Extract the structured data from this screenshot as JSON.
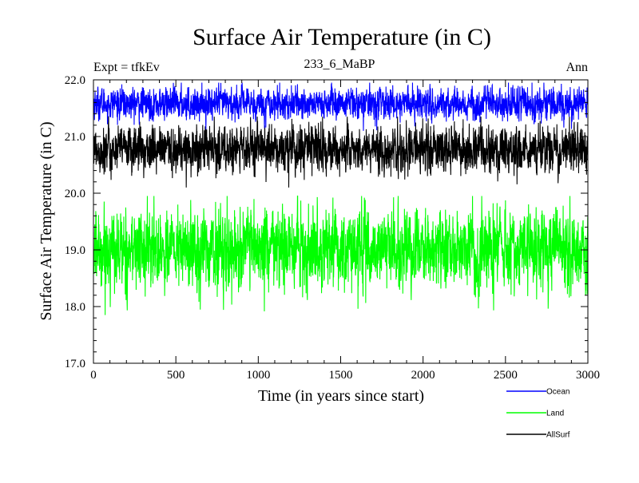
{
  "chart_data": {
    "type": "line",
    "title": "Surface Air Temperature (in C)",
    "subtitle_left": "Expt = tfkEv",
    "subtitle_center": "233_6_MaBP",
    "subtitle_right": "Ann",
    "xlabel": "Time (in years since start)",
    "ylabel": "Surface Air Temperature (in C)",
    "xlim": [
      0,
      3000
    ],
    "ylim": [
      17.0,
      22.0
    ],
    "x_ticks": [
      "0",
      "500",
      "1000",
      "1500",
      "2000",
      "2500",
      "3000"
    ],
    "y_ticks": [
      "17.0",
      "18.0",
      "19.0",
      "20.0",
      "21.0",
      "22.0"
    ],
    "grid": false,
    "legend_position": "bottom-right, below plot",
    "series": [
      {
        "name": "Ocean",
        "color": "#0000ff",
        "mean": 21.58,
        "min": 21.1,
        "max": 21.95
      },
      {
        "name": "Land",
        "color": "#00ff00",
        "mean": 19.0,
        "min": 17.85,
        "max": 19.95
      },
      {
        "name": "AllSurf",
        "color": "#000000",
        "mean": 20.77,
        "min": 20.1,
        "max": 21.35
      }
    ],
    "x_step_years": 1
  }
}
